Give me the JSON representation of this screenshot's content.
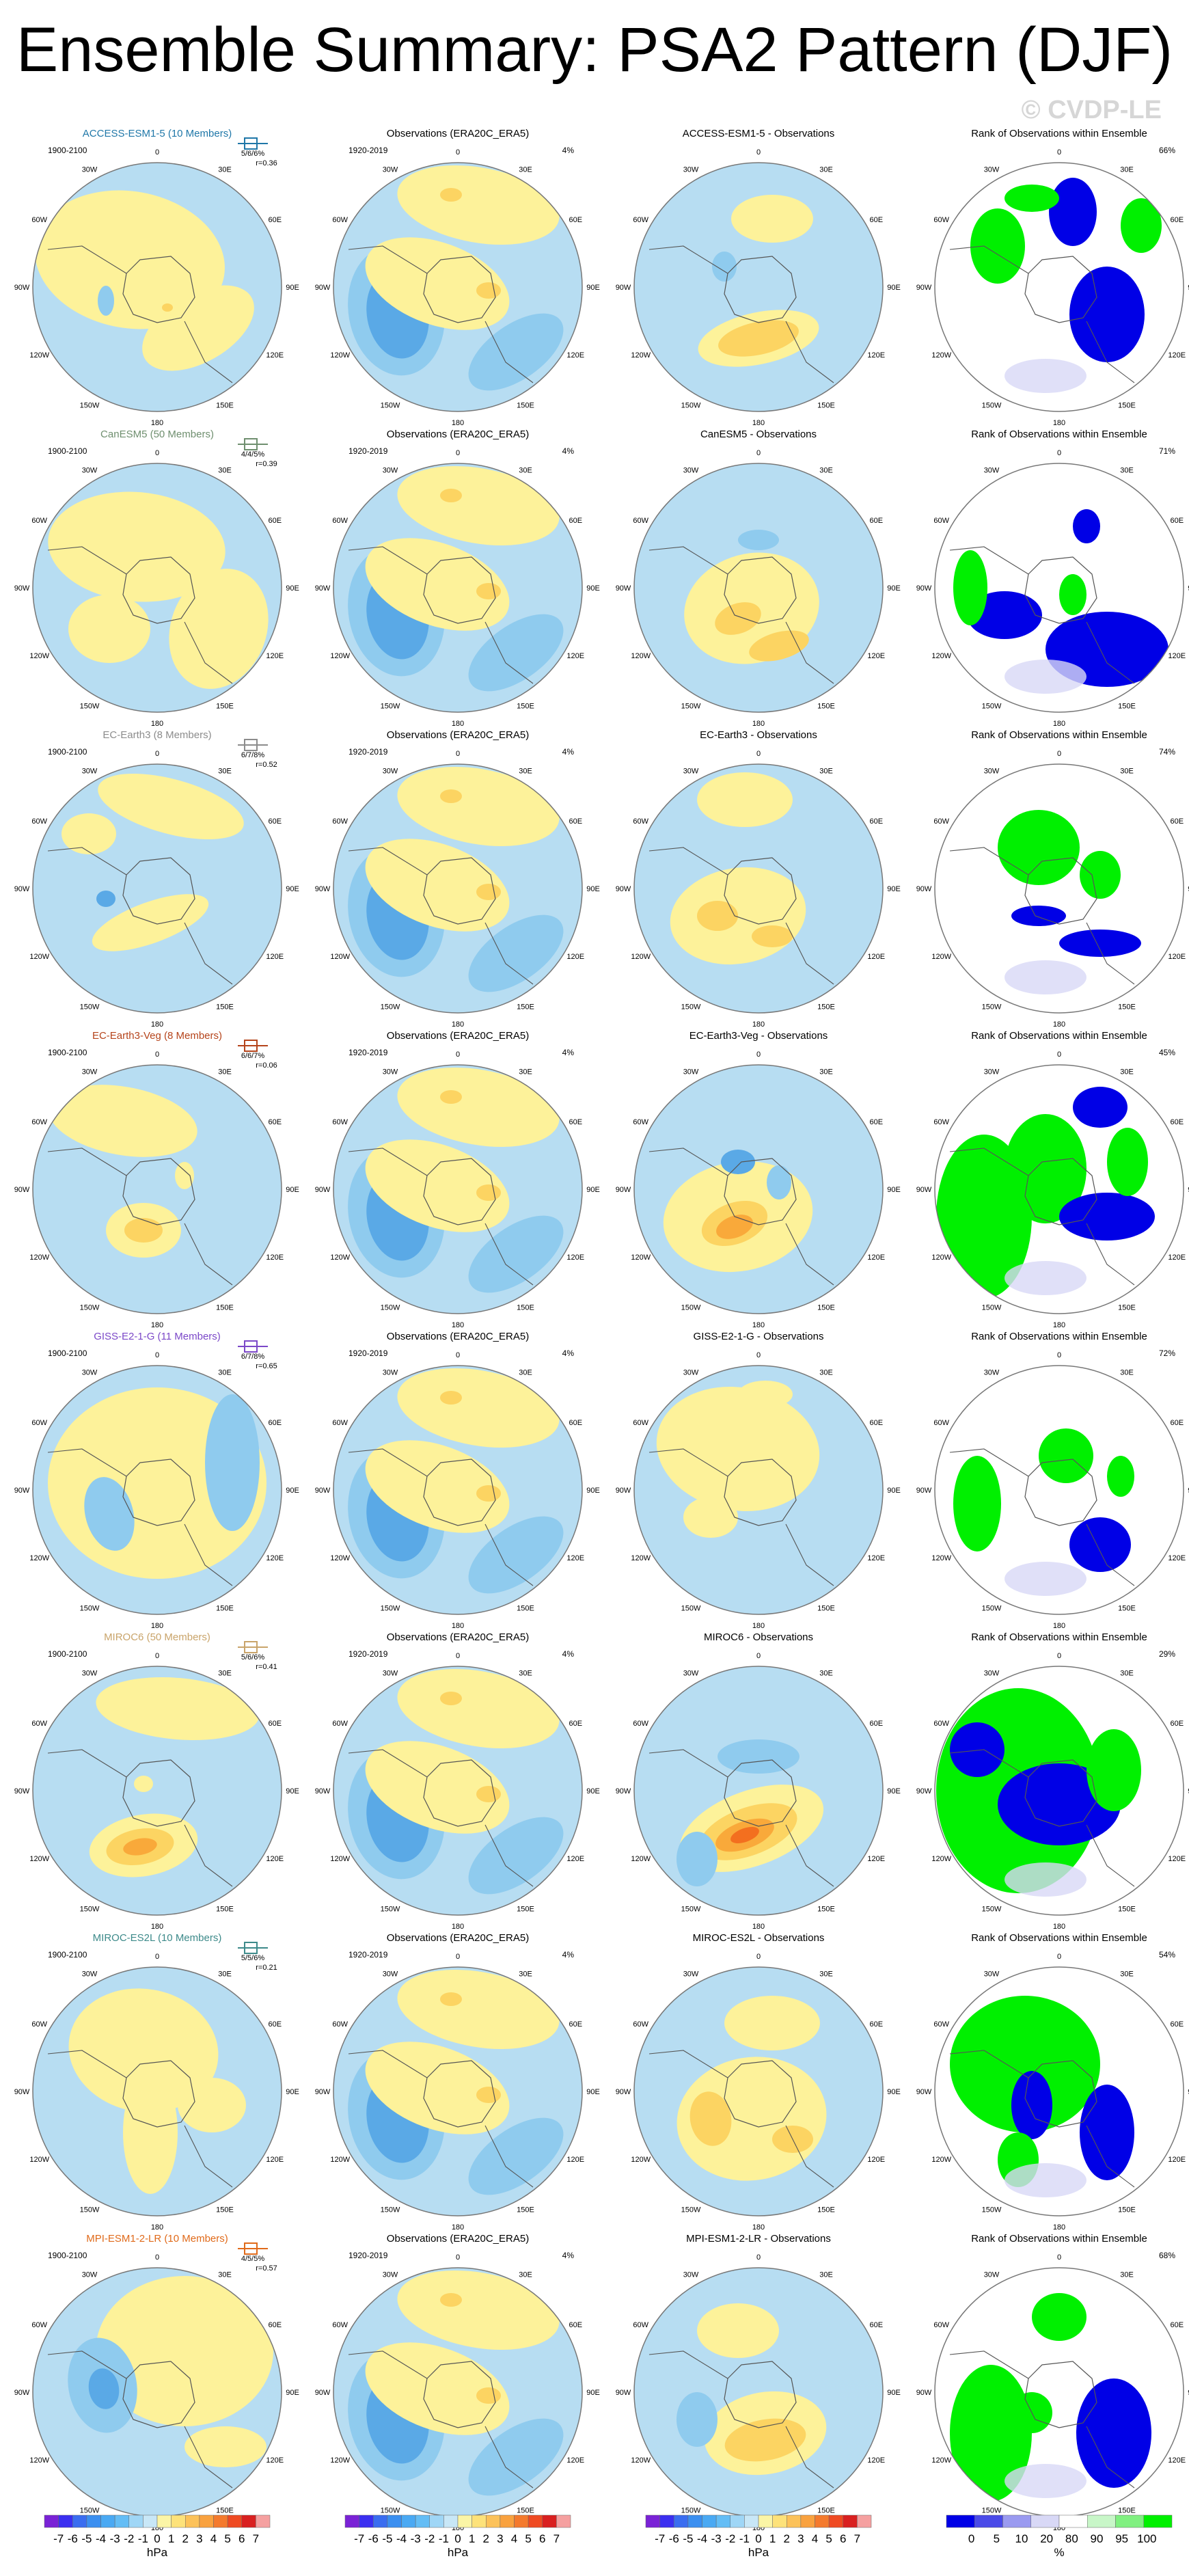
{
  "title": "Ensemble Summary: PSA2 Pattern (DJF)",
  "watermark": "© CVDP-LE",
  "colors": {
    "land_outline": "#555555",
    "ocean_bg": "#b7ddf2",
    "yellow": "#fdf29a",
    "orange1": "#fcd462",
    "orange2": "#f9a93a",
    "orange3": "#f36f1f",
    "blue1": "#8fcbee",
    "blue2": "#5aa9e6",
    "rank_green": "#00f000",
    "rank_blue": "#0000e6",
    "rank_lav": "#d8d8f6",
    "rank_lgreen": "#c8f6c8"
  },
  "common": {
    "obs_title": "Observations (ERA20C_ERA5)",
    "obs_period": "1920-2019",
    "obs_pct": "4%",
    "rank_title": "Rank of Observations within Ensemble",
    "model_period": "1900-2100"
  },
  "lon_labels": {
    "top": "0",
    "tl": "30W",
    "tr": "30E",
    "ul": "60W",
    "ur": "60E",
    "l": "90W",
    "r": "90E",
    "ll": "120W",
    "lr": "120E",
    "bl": "150W",
    "br": "150E",
    "bottom": "180"
  },
  "rows": [
    {
      "model": "ACCESS-ESM1-5 (10 Members)",
      "model_color": "#1f77a8",
      "stats": "5/6/6%",
      "corr": "r=0.36",
      "diff_title": "ACCESS-ESM1-5 - Observations",
      "rank_pct": "66%"
    },
    {
      "model": "CanESM5 (50 Members)",
      "model_color": "#6f8f6f",
      "stats": "4/4/5%",
      "corr": "r=0.39",
      "diff_title": "CanESM5 - Observations",
      "rank_pct": "71%"
    },
    {
      "model": "EC-Earth3 (8 Members)",
      "model_color": "#8c8c8c",
      "stats": "6/7/8%",
      "corr": "r=0.52",
      "diff_title": "EC-Earth3 - Observations",
      "rank_pct": "74%"
    },
    {
      "model": "EC-Earth3-Veg (8 Members)",
      "model_color": "#b5441b",
      "stats": "6/6/7%",
      "corr": "r=0.06",
      "diff_title": "EC-Earth3-Veg - Observations",
      "rank_pct": "45%"
    },
    {
      "model": "GISS-E2-1-G (11 Members)",
      "model_color": "#7b48c8",
      "stats": "6/7/8%",
      "corr": "r=0.65",
      "diff_title": "GISS-E2-1-G - Observations",
      "rank_pct": "72%"
    },
    {
      "model": "MIROC6 (50 Members)",
      "model_color": "#c9a46a",
      "stats": "5/6/6%",
      "corr": "r=0.41",
      "diff_title": "MIROC6 - Observations",
      "rank_pct": "29%"
    },
    {
      "model": "MIROC-ES2L (10 Members)",
      "model_color": "#3d8a8a",
      "stats": "5/5/6%",
      "corr": "r=0.21",
      "diff_title": "MIROC-ES2L - Observations",
      "rank_pct": "54%"
    },
    {
      "model": "MPI-ESM1-2-LR (10 Members)",
      "model_color": "#e06a1a",
      "stats": "4/5/5%",
      "corr": "r=0.57",
      "diff_title": "MPI-ESM1-2-LR - Observations",
      "rank_pct": "68%"
    }
  ],
  "chart_data": {
    "type": "heatmap",
    "colorbars": [
      {
        "ticks": [
          "-7",
          "-6",
          "-5",
          "-4",
          "-3",
          "-2",
          "-1",
          "0",
          "1",
          "2",
          "3",
          "4",
          "5",
          "6",
          "7"
        ],
        "unit": "hPa",
        "colors": [
          "#7a22d6",
          "#3b2ff0",
          "#3a6df0",
          "#3b8ff0",
          "#4aa9f3",
          "#64bdf5",
          "#9fd6f6",
          "#c8e7f7",
          "#fbf5a6",
          "#fde27a",
          "#fcc25a",
          "#f9a23f",
          "#f47a2d",
          "#ef4a22",
          "#d92020",
          "#f5a0a0"
        ]
      },
      {
        "ticks": [
          "-7",
          "-6",
          "-5",
          "-4",
          "-3",
          "-2",
          "-1",
          "0",
          "1",
          "2",
          "3",
          "4",
          "5",
          "6",
          "7"
        ],
        "unit": "hPa",
        "colors": [
          "#7a22d6",
          "#3b2ff0",
          "#3a6df0",
          "#3b8ff0",
          "#4aa9f3",
          "#64bdf5",
          "#9fd6f6",
          "#c8e7f7",
          "#fbf5a6",
          "#fde27a",
          "#fcc25a",
          "#f9a23f",
          "#f47a2d",
          "#ef4a22",
          "#d92020",
          "#f5a0a0"
        ]
      },
      {
        "ticks": [
          "-7",
          "-6",
          "-5",
          "-4",
          "-3",
          "-2",
          "-1",
          "0",
          "1",
          "2",
          "3",
          "4",
          "5",
          "6",
          "7"
        ],
        "unit": "hPa",
        "colors": [
          "#7a22d6",
          "#3b2ff0",
          "#3a6df0",
          "#3b8ff0",
          "#4aa9f3",
          "#64bdf5",
          "#9fd6f6",
          "#c8e7f7",
          "#fbf5a6",
          "#fde27a",
          "#fcc25a",
          "#f9a23f",
          "#f47a2d",
          "#ef4a22",
          "#d92020",
          "#f5a0a0"
        ]
      },
      {
        "ticks": [
          "0",
          "5",
          "10",
          "20",
          "80",
          "90",
          "95",
          "100"
        ],
        "unit": "%",
        "colors": [
          "#0000e6",
          "#4a4ae8",
          "#9a9af0",
          "#d8d8f6",
          "#ffffff",
          "#c8f6c8",
          "#80f080",
          "#00f000"
        ]
      }
    ]
  }
}
